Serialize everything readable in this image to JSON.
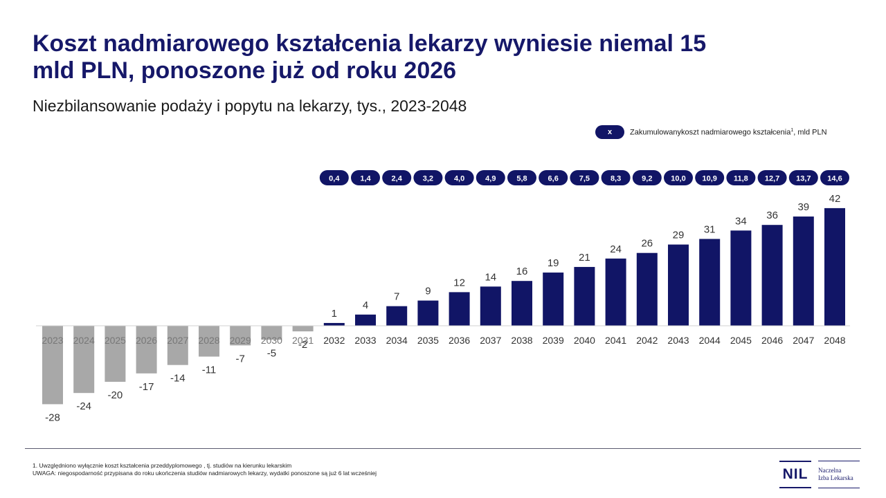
{
  "header": {
    "title": "Koszt nadmiarowego kształcenia lekarzy wyniesie niemal 15 mld PLN, ponoszone już od roku 2026",
    "subtitle": "Niezbilansowanie podaży i popytu na lekarzy, tys., 2023-2048"
  },
  "legend": {
    "marker": "x",
    "text": "Zakumulowanykoszt nadmiarowego kształcenia",
    "superscript": "1",
    "unit": ", mld PLN"
  },
  "colors": {
    "surplus": "#111566",
    "deficit": "#a8a8a8",
    "title": "#161869"
  },
  "chart_data": {
    "type": "bar",
    "title": "Niezbilansowanie podaży i popytu na lekarzy, tys., 2023-2048",
    "xlabel": "",
    "ylabel": "",
    "ylim": [
      -28,
      42
    ],
    "categories": [
      "2023",
      "2024",
      "2025",
      "2026",
      "2027",
      "2028",
      "2029",
      "2030",
      "2031",
      "2032",
      "2033",
      "2034",
      "2035",
      "2036",
      "2037",
      "2038",
      "2039",
      "2040",
      "2041",
      "2042",
      "2043",
      "2044",
      "2045",
      "2046",
      "2047",
      "2048"
    ],
    "values": [
      -28,
      -24,
      -20,
      -17,
      -14,
      -11,
      -7,
      -5,
      -2,
      1,
      4,
      7,
      9,
      12,
      14,
      16,
      19,
      21,
      24,
      26,
      29,
      31,
      34,
      36,
      39,
      42
    ],
    "cost_categories": [
      "2032",
      "2033",
      "2034",
      "2035",
      "2036",
      "2037",
      "2038",
      "2039",
      "2040",
      "2041",
      "2042",
      "2043",
      "2044",
      "2045",
      "2046",
      "2047",
      "2048"
    ],
    "cost_labels": [
      "0,4",
      "1,4",
      "2,4",
      "3,2",
      "4,0",
      "4,9",
      "5,8",
      "6,6",
      "7,5",
      "8,3",
      "9,2",
      "10,0",
      "10,9",
      "11,8",
      "12,7",
      "13,7",
      "14,6"
    ]
  },
  "footer": {
    "note1": "1. Uwzględniono wyłącznie koszt kształcenia przeddyplomowego , tj. studiów na kierunku lekarskim",
    "note2": "UWAGA: niegospodarność przypisana do roku ukończenia studiów nadmiarowych lekarzy, wydatki ponoszone są już 6 lat wcześniej",
    "logo_mark": "NIL",
    "logo_line1": "Naczelna",
    "logo_line2": "Izba Lekarska"
  }
}
